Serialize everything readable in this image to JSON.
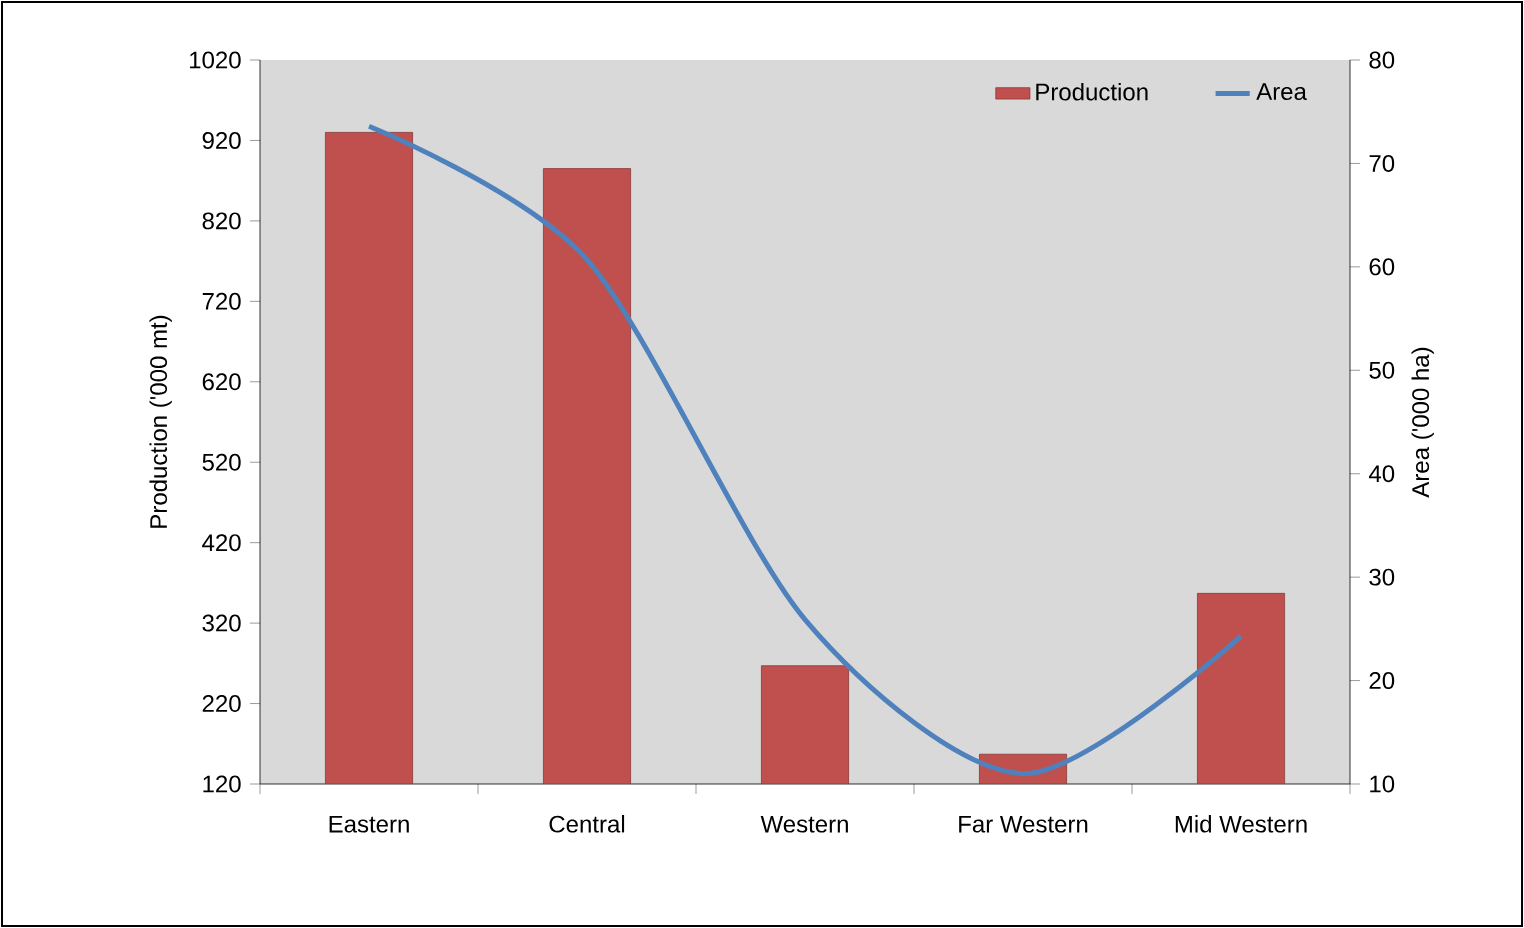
{
  "chart_data": {
    "type": "bar",
    "ylabel": "Production ('000 mt)",
    "y2label": "Area ('000 ha)",
    "categories": [
      "Eastern",
      "Central",
      "Western",
      "Far Western",
      "Mid Western"
    ],
    "series": [
      {
        "name": "Production",
        "color": "#c0504d",
        "values": [
          930,
          885,
          267,
          157,
          357
        ]
      },
      {
        "name": "Area",
        "type": "line",
        "axis": "y2",
        "color": "#4f81bd",
        "values": [
          73.6,
          60.7,
          25.9,
          11,
          24.3
        ]
      }
    ],
    "ylim": [
      120,
      1020
    ],
    "yticks": [
      120,
      220,
      320,
      420,
      520,
      620,
      720,
      820,
      920,
      1020
    ],
    "y2lim": [
      10,
      80
    ],
    "y2ticks": [
      10,
      20,
      30,
      40,
      50,
      60,
      70,
      80
    ],
    "legend": "top right"
  }
}
